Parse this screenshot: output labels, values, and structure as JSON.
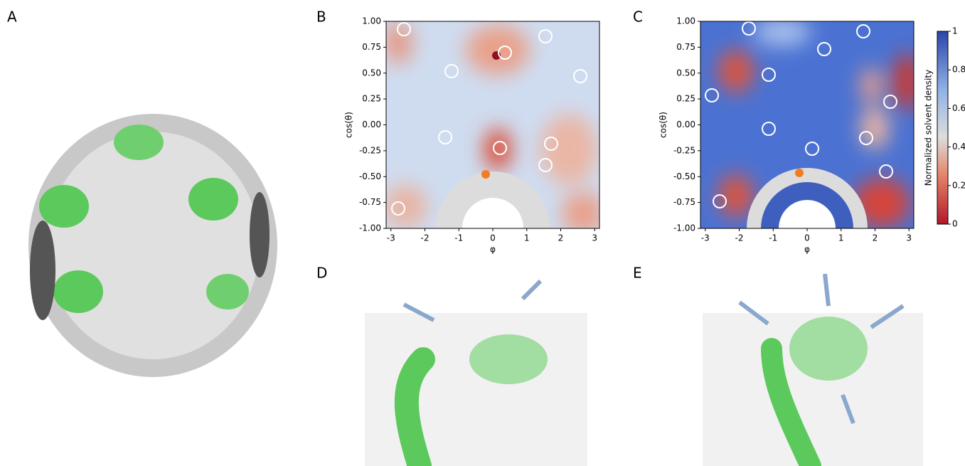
{
  "panel_labels": [
    "A",
    "B",
    "C",
    "D",
    "E"
  ],
  "density_maps": [
    {
      "xlabel": "φ",
      "ylabel": "cos(θ)",
      "xlim": [
        -3.14159,
        3.14159
      ],
      "ylim": [
        -1,
        1
      ],
      "xticks": [
        -3,
        -2,
        -1,
        0,
        1,
        2,
        3
      ],
      "yticks": [
        {
          "value": -1,
          "label": "-1.00"
        },
        {
          "value": -0.75,
          "label": "-0.75"
        },
        {
          "value": -0.5,
          "label": "-0.50"
        },
        {
          "value": -0.25,
          "label": "-0.25"
        },
        {
          "value": 0,
          "label": "0.00"
        },
        {
          "value": 0.25,
          "label": "0.25"
        },
        {
          "value": 0.5,
          "label": "0.50"
        },
        {
          "value": 0.75,
          "label": "0.75"
        },
        {
          "value": 1,
          "label": "1.00"
        }
      ]
    },
    {
      "xlabel": "φ",
      "ylabel": "cos(θ)",
      "xlim": [
        -3.14159,
        3.14159
      ],
      "ylim": [
        -1,
        1
      ],
      "xticks": [
        -3,
        -2,
        -1,
        0,
        1,
        2,
        3
      ],
      "yticks": [
        {
          "value": -1,
          "label": "-1.00"
        },
        {
          "value": -0.75,
          "label": "-0.75"
        },
        {
          "value": -0.5,
          "label": "-0.50"
        },
        {
          "value": -0.25,
          "label": "-0.25"
        },
        {
          "value": 0,
          "label": "0.00"
        },
        {
          "value": 0.25,
          "label": "0.25"
        },
        {
          "value": 0.5,
          "label": "0.50"
        },
        {
          "value": 0.75,
          "label": "0.75"
        },
        {
          "value": 1,
          "label": "1.00"
        }
      ]
    }
  ],
  "colorbar": {
    "label": "Normalized solvent density",
    "lim": [
      0,
      1
    ],
    "ticks": [
      0,
      0.2,
      0.4,
      0.6,
      0.8,
      1
    ]
  }
}
